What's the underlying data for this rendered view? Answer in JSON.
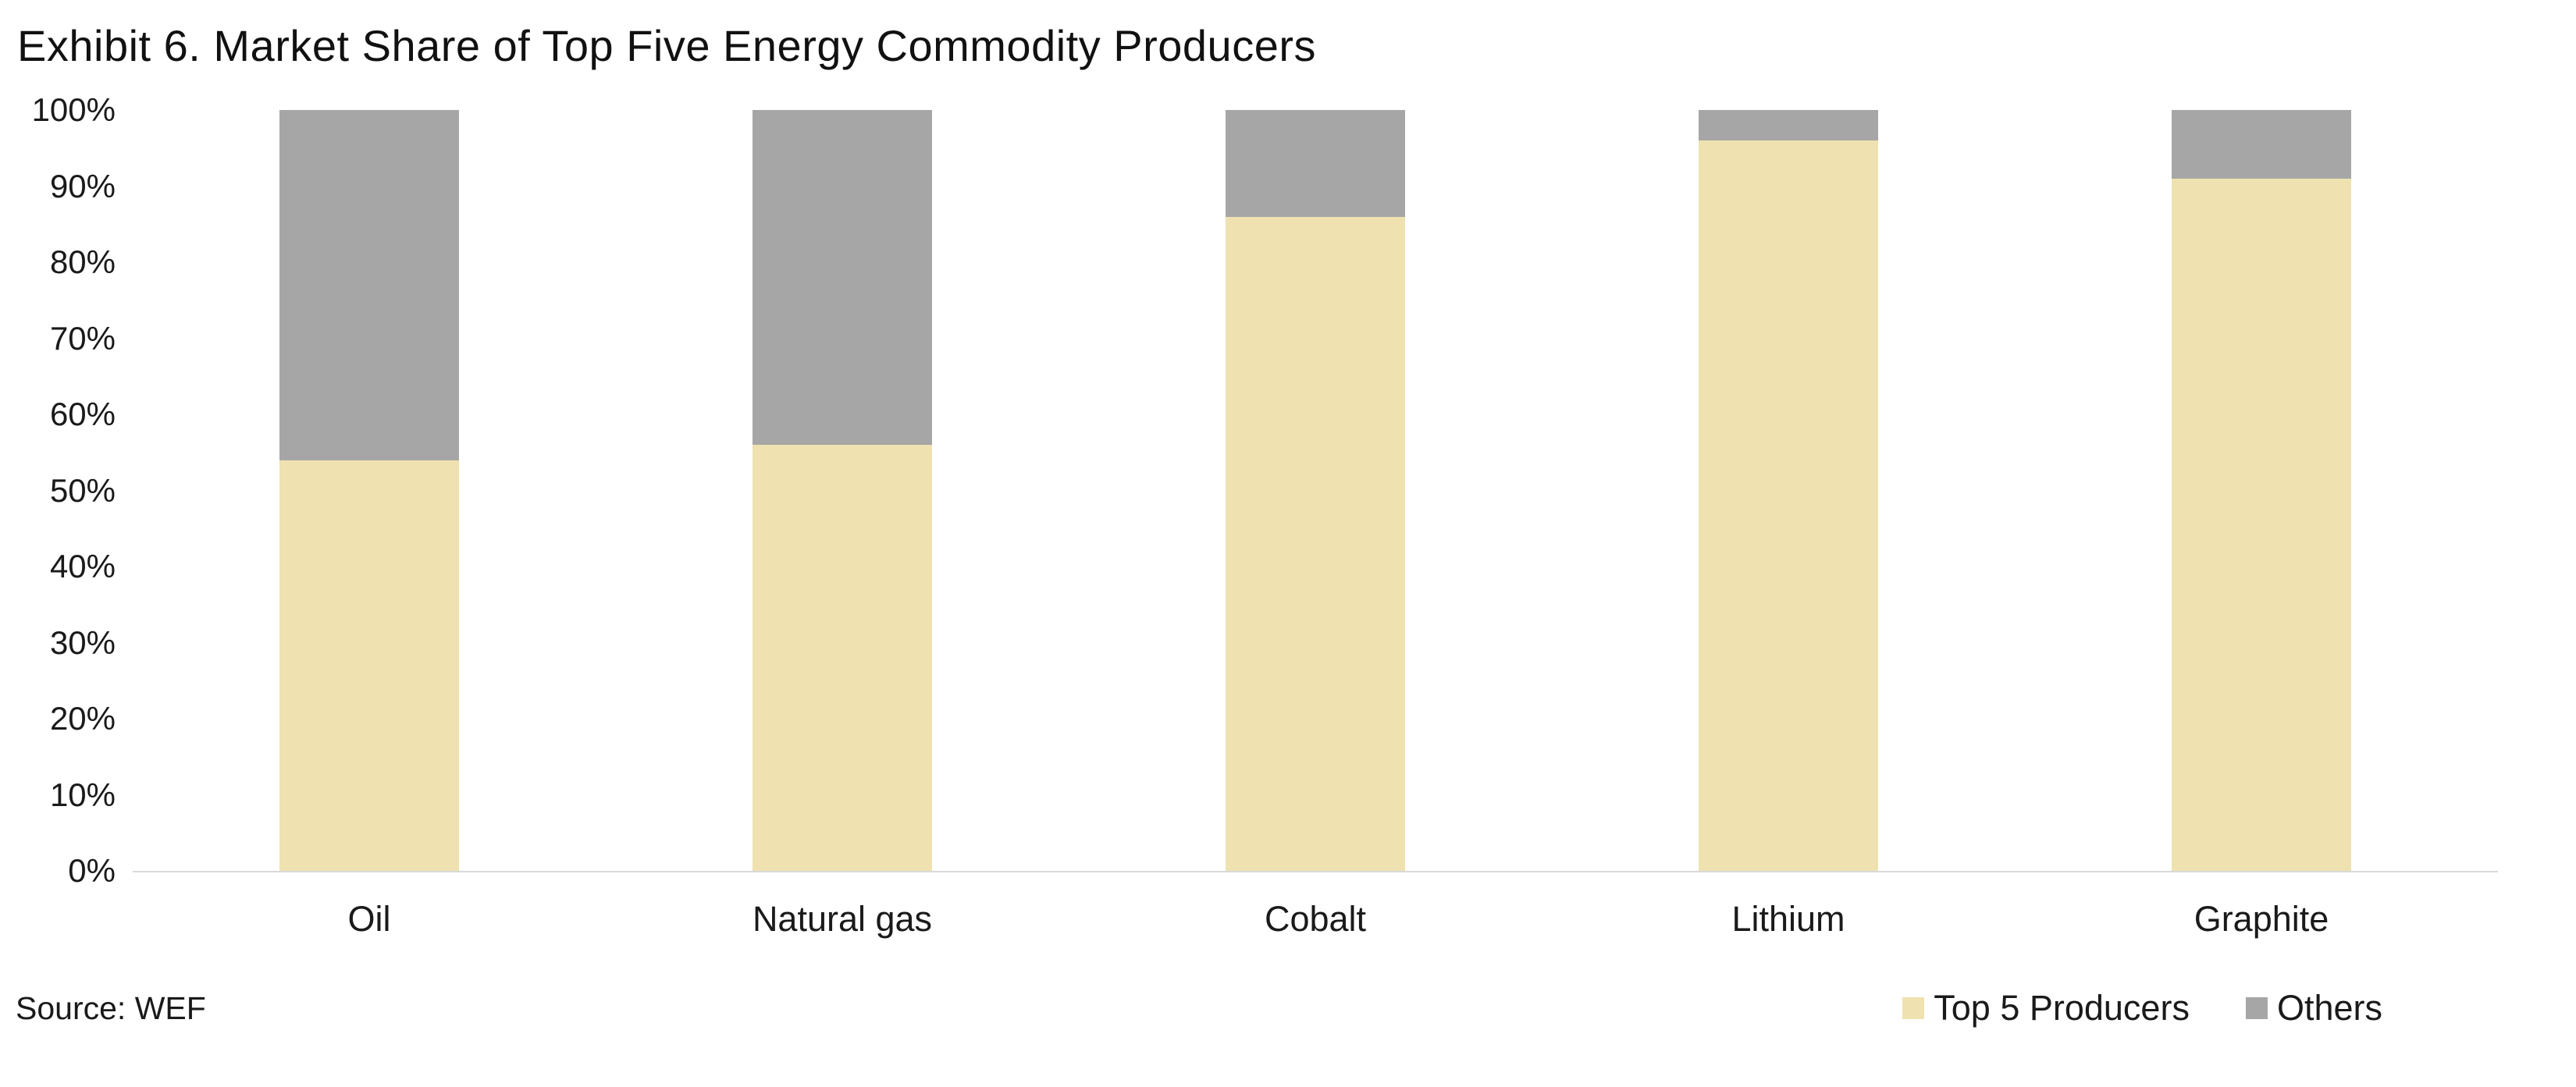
{
  "title": "Exhibit 6. Market Share of Top Five Energy Commodity Producers",
  "source": "Source: WEF",
  "chart_data": {
    "type": "bar",
    "stacked": true,
    "title": "Exhibit 6. Market Share of Top Five Energy Commodity Producers",
    "categories": [
      "Oil",
      "Natural gas",
      "Cobalt",
      "Lithium",
      "Graphite"
    ],
    "series": [
      {
        "name": "Top 5 Producers",
        "color": "#efe2b0",
        "values": [
          54,
          56,
          86,
          96,
          91
        ]
      },
      {
        "name": "Others",
        "color": "#a6a6a6",
        "values": [
          46,
          44,
          14,
          4,
          9
        ]
      }
    ],
    "xlabel": "",
    "ylabel": "",
    "ylim": [
      0,
      100
    ],
    "ytick_step": 10,
    "ytick_suffix": "%",
    "grid": false,
    "axis_line_color": "#d9d9d9",
    "legend_position": "bottom-right",
    "source": "Source: WEF"
  }
}
